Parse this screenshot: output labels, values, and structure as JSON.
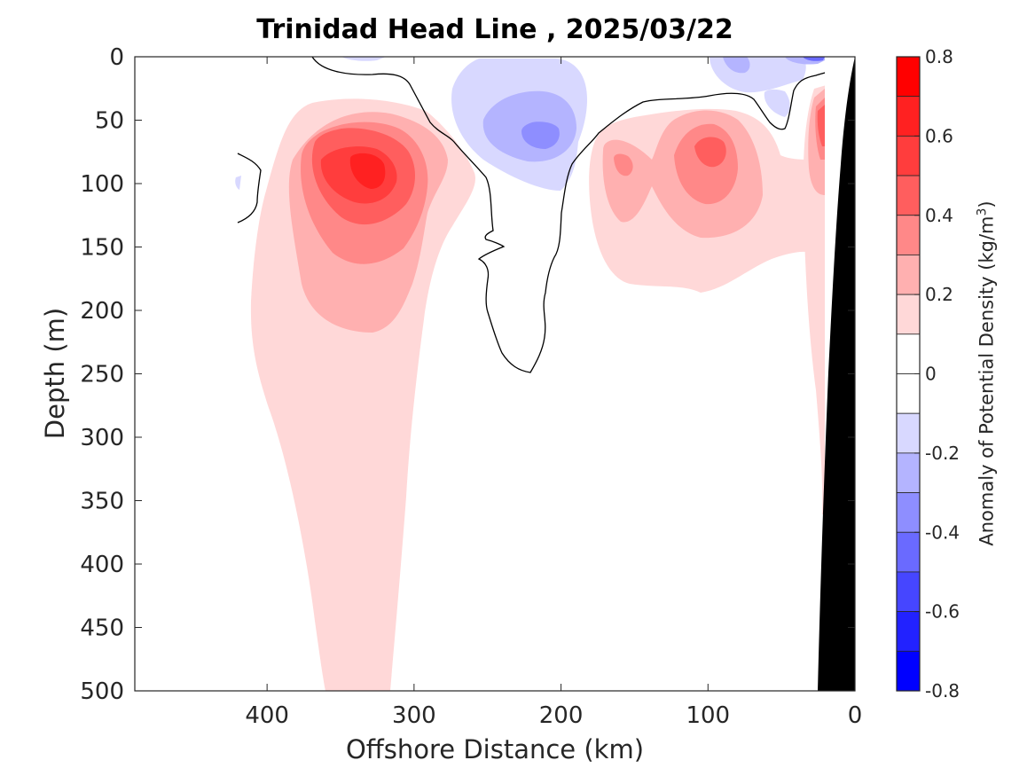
{
  "chart_data": {
    "type": "heatmap",
    "title": "Trinidad Head Line , 2025/03/22",
    "xlabel": "Offshore Distance (km)",
    "ylabel": "Depth (m)",
    "colorbar_label_prefix": "Anomaly of Potential Density (kg/m",
    "colorbar_label_sup": "3",
    "colorbar_label_suffix": ")",
    "xlim": [
      490,
      0
    ],
    "ylim": [
      500,
      0
    ],
    "x_ticks": [
      400,
      300,
      200,
      100,
      0
    ],
    "y_ticks": [
      0,
      50,
      100,
      150,
      200,
      250,
      300,
      350,
      400,
      450,
      500
    ],
    "colorbar_range": [
      -0.8,
      0.8
    ],
    "colorbar_ticks": [
      "0.8",
      "0.6",
      "0.4",
      "0.2",
      "0",
      "-0.2",
      "-0.4",
      "-0.6",
      "-0.8"
    ],
    "colorbar_levels": [
      {
        "from": 0.7,
        "to": 0.8,
        "color": "#ff0000"
      },
      {
        "from": 0.6,
        "to": 0.7,
        "color": "#ff2121"
      },
      {
        "from": 0.5,
        "to": 0.6,
        "color": "#ff3d3d"
      },
      {
        "from": 0.4,
        "to": 0.5,
        "color": "#ff5e5e"
      },
      {
        "from": 0.3,
        "to": 0.4,
        "color": "#ff8888"
      },
      {
        "from": 0.2,
        "to": 0.3,
        "color": "#ffb0b0"
      },
      {
        "from": 0.1,
        "to": 0.2,
        "color": "#ffd8d8"
      },
      {
        "from": 0.0,
        "to": 0.1,
        "color": "#ffffff"
      },
      {
        "from": -0.1,
        "to": 0.0,
        "color": "#ffffff"
      },
      {
        "from": -0.2,
        "to": -0.1,
        "color": "#d8d8ff"
      },
      {
        "from": -0.3,
        "to": -0.2,
        "color": "#b4b4ff"
      },
      {
        "from": -0.4,
        "to": -0.3,
        "color": "#8e8eff"
      },
      {
        "from": -0.5,
        "to": -0.4,
        "color": "#6a6aff"
      },
      {
        "from": -0.6,
        "to": -0.5,
        "color": "#4646ff"
      },
      {
        "from": -0.7,
        "to": -0.6,
        "color": "#2222ff"
      },
      {
        "from": -0.8,
        "to": -0.7,
        "color": "#0000ff"
      }
    ],
    "features": [
      {
        "kind": "positive core",
        "x_center": 330,
        "depth_center": 95,
        "max_anomaly": 0.7
      },
      {
        "kind": "negative core",
        "x_center": 215,
        "depth_center": 60,
        "min_anomaly": -0.4
      },
      {
        "kind": "positive core",
        "x_center": 100,
        "depth_center": 80,
        "max_anomaly": 0.5
      },
      {
        "kind": "positive core",
        "x_center": 157,
        "depth_center": 85,
        "max_anomaly": 0.4
      },
      {
        "kind": "positive band",
        "x_range": [
          410,
          260
        ],
        "depth_range": [
          50,
          500
        ],
        "anomaly": 0.1
      }
    ],
    "bathymetry_color": "#000000"
  }
}
